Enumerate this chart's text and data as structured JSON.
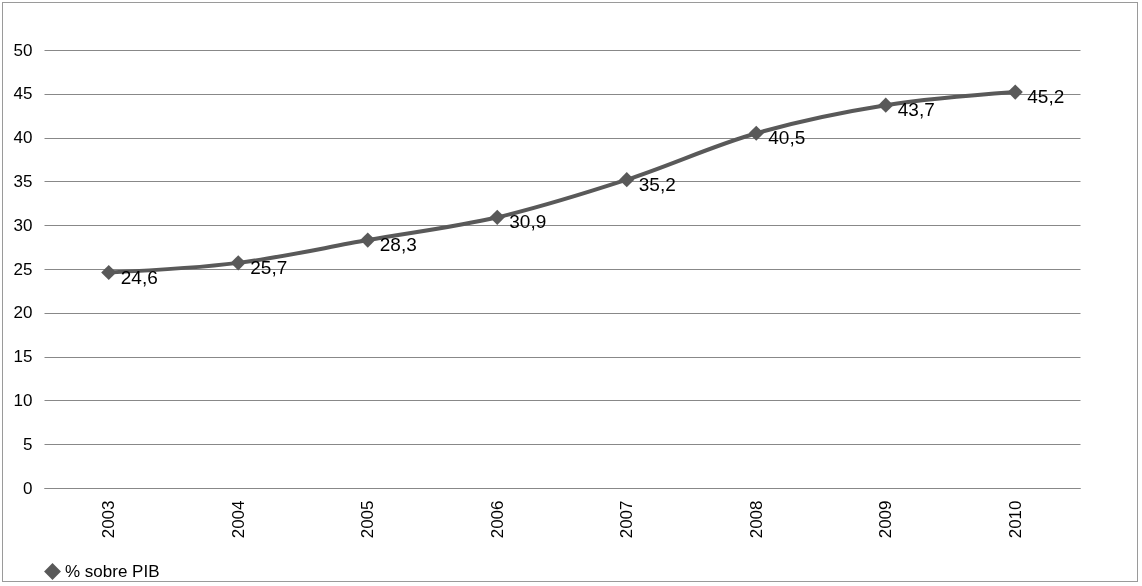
{
  "chart_data": {
    "type": "line",
    "categories": [
      "2003",
      "2004",
      "2005",
      "2006",
      "2007",
      "2008",
      "2009",
      "2010"
    ],
    "series": [
      {
        "name": "% sobre PIB",
        "color": "#595959",
        "values": [
          24.6,
          25.7,
          28.3,
          30.9,
          35.2,
          40.5,
          43.7,
          45.2
        ],
        "value_labels": [
          "24,6",
          "25,7",
          "28,3",
          "30,9",
          "35,2",
          "40,5",
          "43,7",
          "45,2"
        ]
      }
    ],
    "ylim": [
      0,
      50
    ],
    "yticks": [
      0,
      5,
      10,
      15,
      20,
      25,
      30,
      35,
      40,
      45,
      50
    ],
    "grid": "y",
    "legend": "bottom",
    "marker": "diamond",
    "line_style": "solid"
  }
}
